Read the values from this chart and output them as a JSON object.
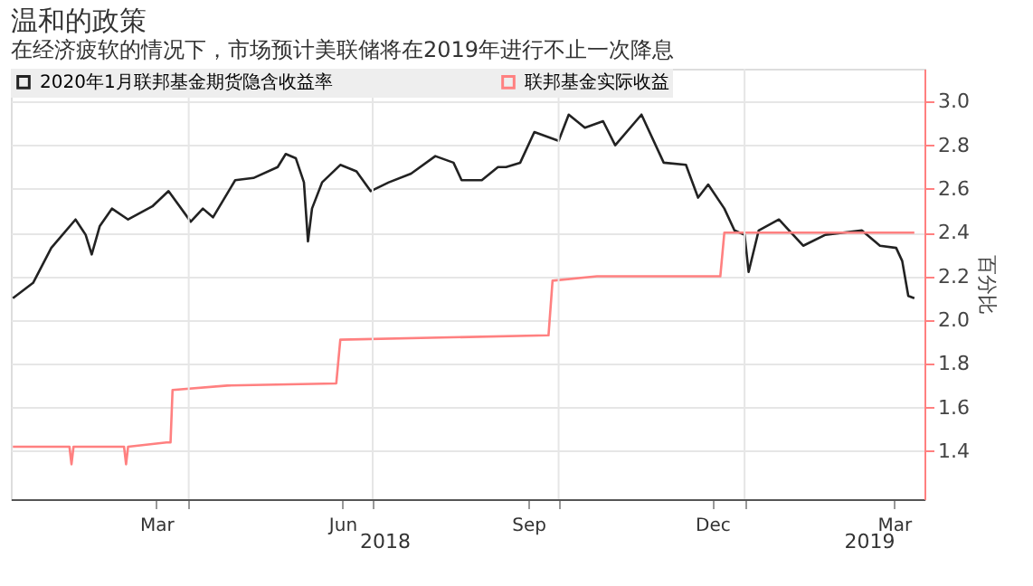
{
  "chart_data": {
    "type": "line",
    "title": "温和的政策",
    "subtitle": "在经济疲软的情况下，市场预计美联储将在2019年进行不止一次降息",
    "ylabel": "百分比",
    "xlim": [
      "2018-01-03",
      "2019-03-31"
    ],
    "ylim": [
      1.18,
      3.15
    ],
    "yticks": [
      {
        "value": 1.4,
        "label": "1.4"
      },
      {
        "value": 1.6,
        "label": "1.6"
      },
      {
        "value": 1.8,
        "label": "1.8"
      },
      {
        "value": 2,
        "label": "2.0"
      },
      {
        "value": 2.2,
        "label": "2.2"
      },
      {
        "value": 2.4,
        "label": "2.4"
      },
      {
        "value": 2.6,
        "label": "2.6"
      },
      {
        "value": 2.8,
        "label": "2.8"
      },
      {
        "value": 3,
        "label": "3.0"
      }
    ],
    "xticks": [
      {
        "value": "2018-03-16",
        "label": "Mar"
      },
      {
        "value": "2018-06-16",
        "label": "Jun"
      },
      {
        "value": "2018-09-16",
        "label": "Sep"
      },
      {
        "value": "2018-12-16",
        "label": "Dec"
      },
      {
        "value": "2019-03-16",
        "label": "Mar"
      },
      {
        "value": "2018-04-01",
        "label": null
      },
      {
        "value": "2018-07-01",
        "label": null
      },
      {
        "value": "2018-10-01",
        "label": null
      },
      {
        "value": "2019-01-01",
        "label": null
      }
    ],
    "grid": true,
    "legend": "top left",
    "line_style": "solid",
    "marker": "none",
    "annotations": [
      "2018",
      "2019"
    ],
    "series": [
      {
        "name": "2020年1月联邦基金期货隐含收益率",
        "color": "#222222",
        "x": [
          "2018-01-04",
          "2018-01-14",
          "2018-01-23",
          "2018-02-04",
          "2018-02-09",
          "2018-02-12",
          "2018-02-16",
          "2018-02-22",
          "2018-03-02",
          "2018-03-14",
          "2018-03-22",
          "2018-04-02",
          "2018-04-08",
          "2018-04-13",
          "2018-04-24",
          "2018-05-03",
          "2018-05-15",
          "2018-05-19",
          "2018-05-24",
          "2018-05-28",
          "2018-05-30",
          "2018-06-01",
          "2018-06-06",
          "2018-06-15",
          "2018-06-23",
          "2018-06-30",
          "2018-07-09",
          "2018-07-20",
          "2018-08-01",
          "2018-08-10",
          "2018-08-14",
          "2018-08-24",
          "2018-09-01",
          "2018-09-05",
          "2018-09-12",
          "2018-09-19",
          "2018-10-01",
          "2018-10-06",
          "2018-10-14",
          "2018-10-23",
          "2018-10-29",
          "2018-11-11",
          "2018-11-22",
          "2018-12-03",
          "2018-12-09",
          "2018-12-14",
          "2018-12-22",
          "2018-12-27",
          "2019-01-01",
          "2019-01-03",
          "2019-01-08",
          "2019-01-18",
          "2019-01-30",
          "2019-02-10",
          "2019-02-28",
          "2019-03-09",
          "2019-03-17",
          "2019-03-20",
          "2019-03-23",
          "2019-03-26"
        ],
        "values": [
          2.1,
          2.17,
          2.33,
          2.46,
          2.39,
          2.3,
          2.43,
          2.51,
          2.46,
          2.52,
          2.59,
          2.45,
          2.51,
          2.47,
          2.64,
          2.65,
          2.7,
          2.76,
          2.74,
          2.63,
          2.36,
          2.51,
          2.63,
          2.71,
          2.68,
          2.59,
          2.63,
          2.67,
          2.75,
          2.72,
          2.64,
          2.64,
          2.7,
          2.7,
          2.72,
          2.86,
          2.82,
          2.94,
          2.88,
          2.91,
          2.8,
          2.94,
          2.72,
          2.71,
          2.56,
          2.62,
          2.51,
          2.41,
          2.39,
          2.22,
          2.41,
          2.46,
          2.34,
          2.39,
          2.41,
          2.34,
          2.33,
          2.27,
          2.11,
          2.1
        ]
      },
      {
        "name": "联邦基金实际收益",
        "color": "#ff8080",
        "x": [
          "2018-01-04",
          "2018-02-01",
          "2018-02-02",
          "2018-02-03",
          "2018-02-28",
          "2018-03-01",
          "2018-03-02",
          "2018-03-21",
          "2018-03-23",
          "2018-03-24",
          "2018-04-20",
          "2018-06-13",
          "2018-06-15",
          "2018-09-26",
          "2018-09-28",
          "2018-10-20",
          "2018-12-20",
          "2018-12-22",
          "2019-03-26"
        ],
        "values": [
          1.42,
          1.42,
          1.34,
          1.42,
          1.42,
          1.34,
          1.42,
          1.44,
          1.44,
          1.68,
          1.7,
          1.71,
          1.91,
          1.93,
          2.18,
          2.2,
          2.2,
          2.4,
          2.4
        ]
      }
    ]
  }
}
